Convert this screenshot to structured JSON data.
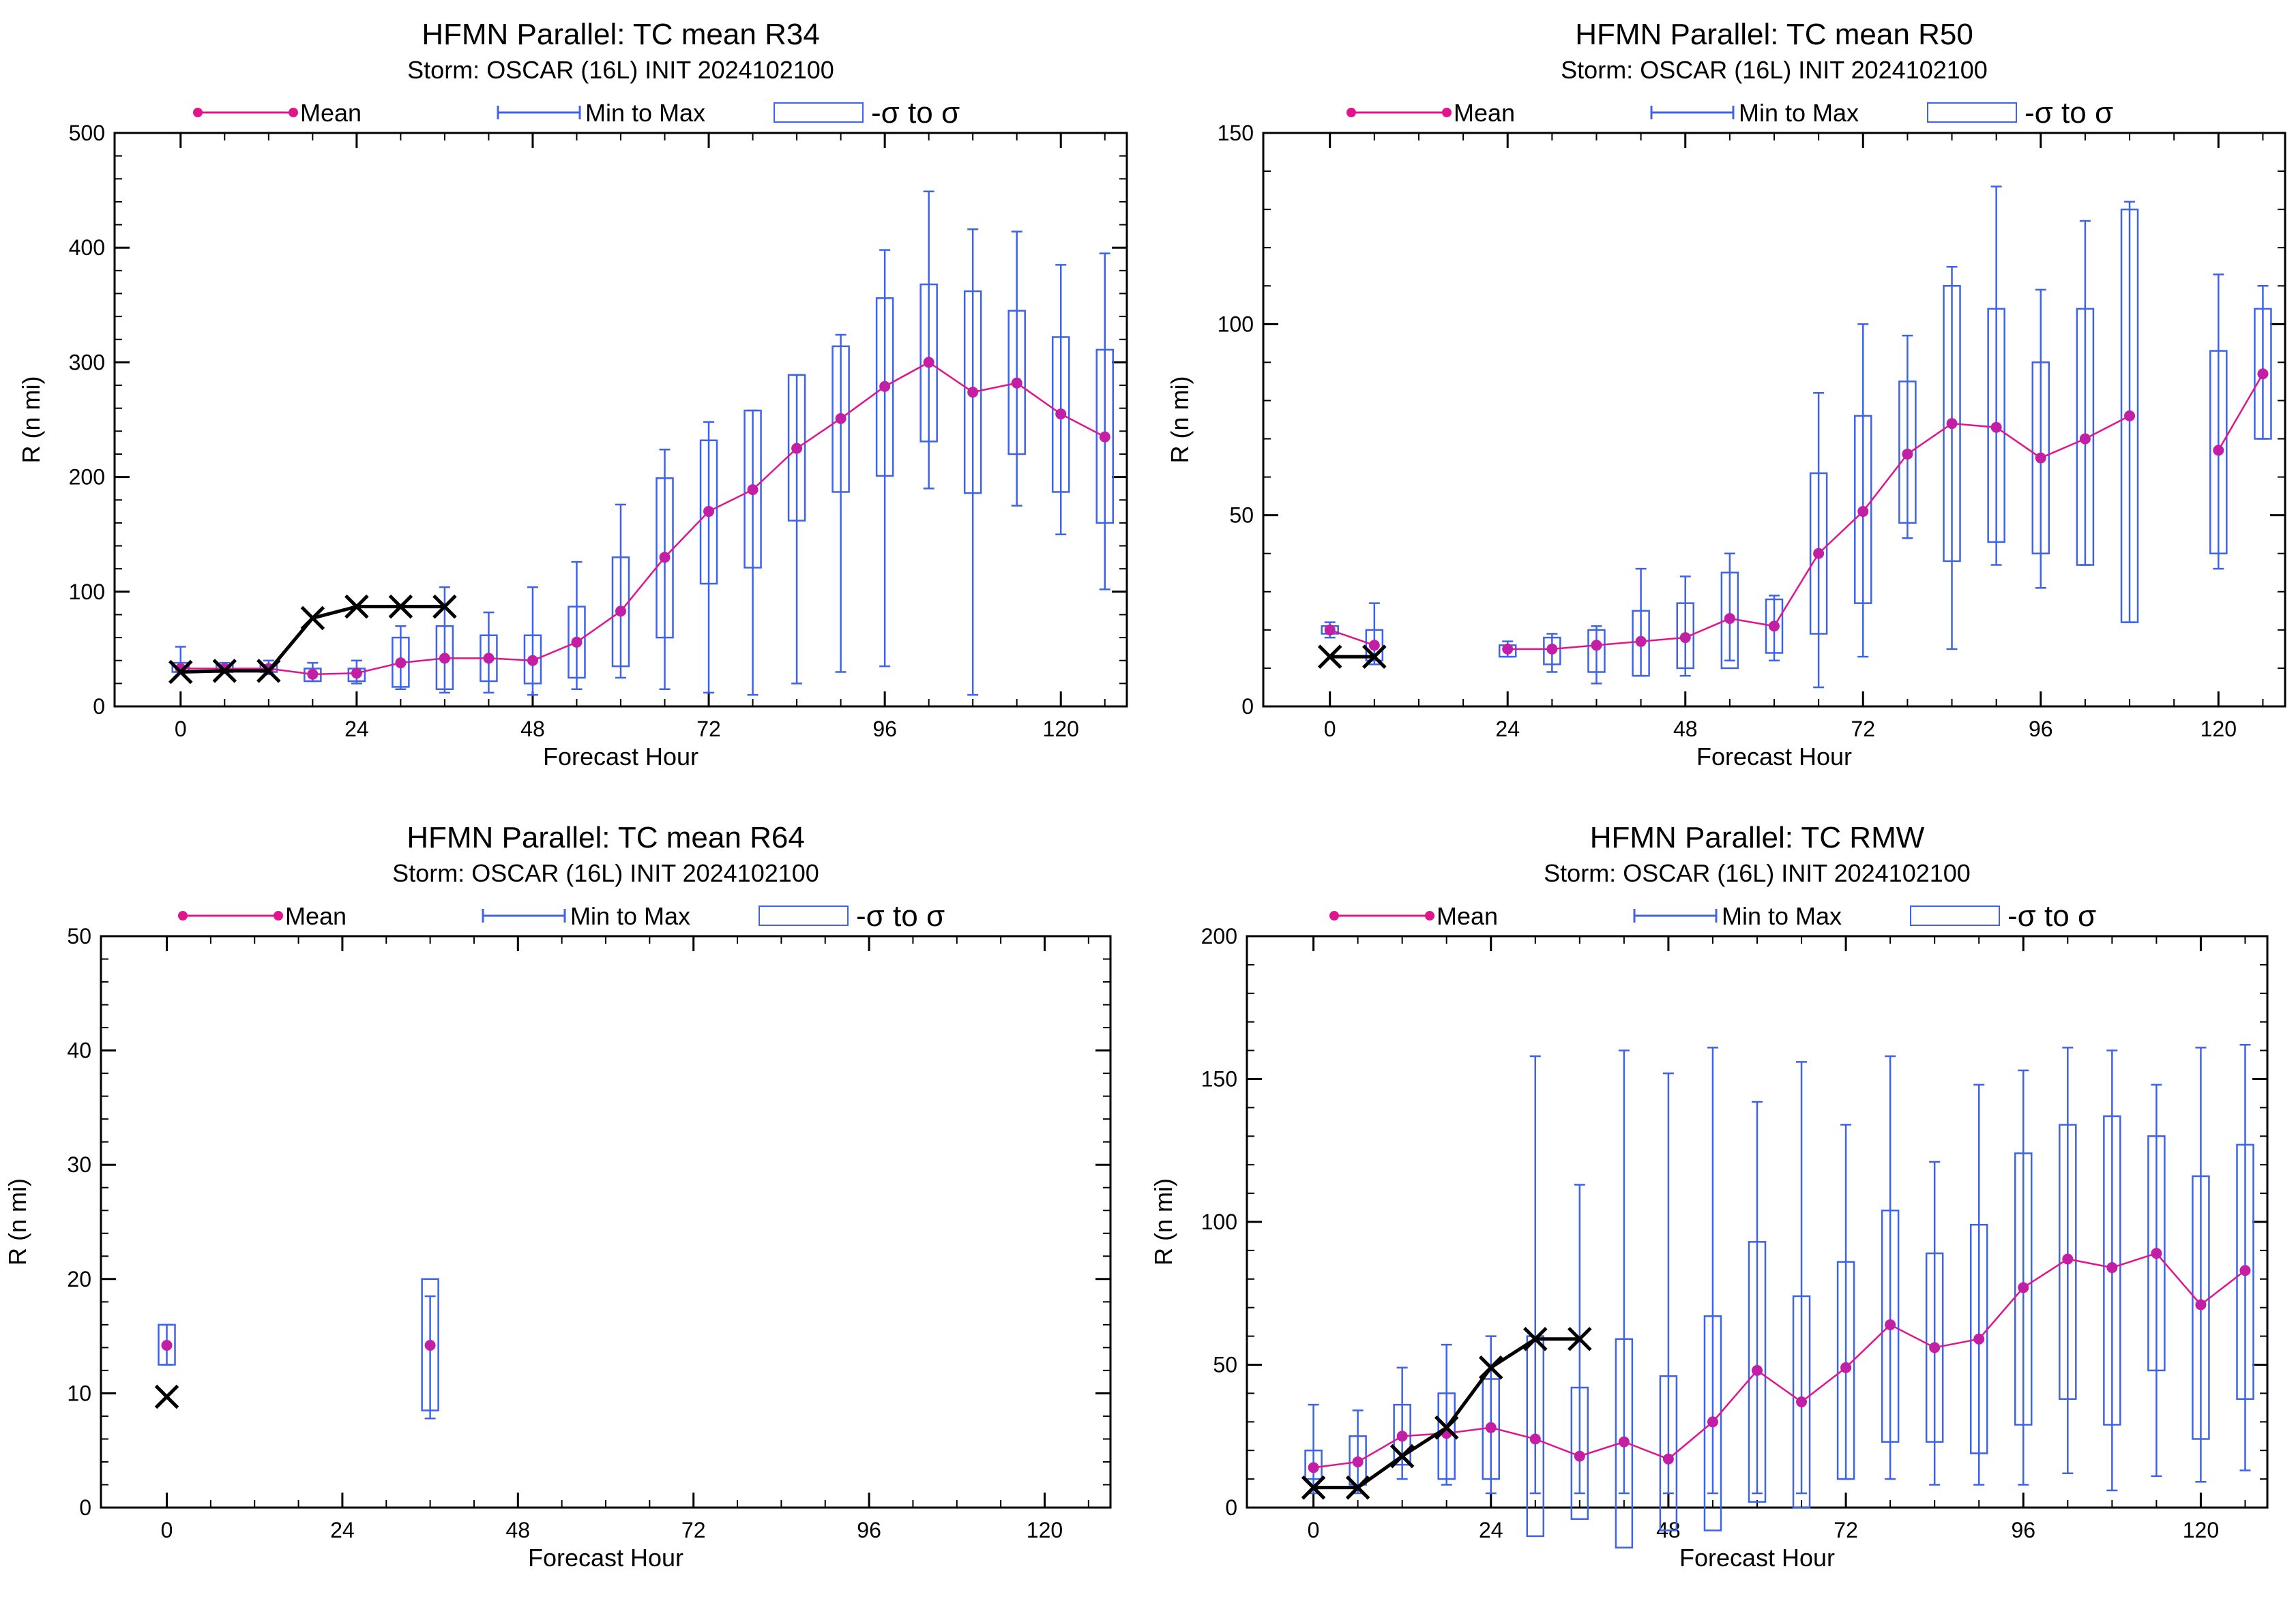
{
  "colors": {
    "mean": "#e0148c",
    "mean_dot": "#c21ea6",
    "range": "#3e63e6",
    "obs": "#000000"
  },
  "legend": {
    "mean": "Mean",
    "range": "Min to Max",
    "sigma": "-σ to σ"
  },
  "chart_data": [
    {
      "type": "box",
      "title": "HFMN Parallel: TC mean R34",
      "subtitle": "Storm: OSCAR (16L) INIT 2024102100",
      "xlabel": "Forecast Hour",
      "ylabel": "R (n mi)",
      "xlim": [
        -9,
        129
      ],
      "ylim": [
        0,
        500
      ],
      "xticks": [
        0,
        24,
        48,
        72,
        96,
        120
      ],
      "yticks": [
        0,
        100,
        200,
        300,
        400,
        500
      ],
      "boxes": [
        {
          "x": 0,
          "min": 30,
          "max": 52,
          "lo": 30,
          "hi": 38,
          "mean": 33
        },
        {
          "x": 6,
          "min": 30,
          "max": 38,
          "lo": 30,
          "hi": 36,
          "mean": 33
        },
        {
          "x": 12,
          "min": 28,
          "max": 40,
          "lo": 30,
          "hi": 36,
          "mean": 33
        },
        {
          "x": 18,
          "min": 22,
          "max": 38,
          "lo": 22,
          "hi": 33,
          "mean": 28
        },
        {
          "x": 24,
          "min": 20,
          "max": 40,
          "lo": 22,
          "hi": 33,
          "mean": 29
        },
        {
          "x": 30,
          "min": 15,
          "max": 70,
          "lo": 17,
          "hi": 60,
          "mean": 38
        },
        {
          "x": 36,
          "min": 12,
          "max": 104,
          "lo": 15,
          "hi": 70,
          "mean": 42
        },
        {
          "x": 42,
          "min": 12,
          "max": 82,
          "lo": 22,
          "hi": 62,
          "mean": 42
        },
        {
          "x": 48,
          "min": 10,
          "max": 104,
          "lo": 20,
          "hi": 62,
          "mean": 40
        },
        {
          "x": 54,
          "min": 15,
          "max": 126,
          "lo": 25,
          "hi": 87,
          "mean": 56
        },
        {
          "x": 60,
          "min": 25,
          "max": 176,
          "lo": 35,
          "hi": 130,
          "mean": 83
        },
        {
          "x": 66,
          "min": 15,
          "max": 224,
          "lo": 60,
          "hi": 199,
          "mean": 130
        },
        {
          "x": 72,
          "min": 12,
          "max": 248,
          "lo": 107,
          "hi": 232,
          "mean": 170
        },
        {
          "x": 78,
          "min": 10,
          "max": 258,
          "lo": 121,
          "hi": 258,
          "mean": 189
        },
        {
          "x": 84,
          "min": 20,
          "max": 289,
          "lo": 162,
          "hi": 289,
          "mean": 225
        },
        {
          "x": 90,
          "min": 30,
          "max": 324,
          "lo": 187,
          "hi": 314,
          "mean": 251
        },
        {
          "x": 96,
          "min": 35,
          "max": 398,
          "lo": 201,
          "hi": 356,
          "mean": 279
        },
        {
          "x": 102,
          "min": 190,
          "max": 449,
          "lo": 231,
          "hi": 368,
          "mean": 300
        },
        {
          "x": 108,
          "min": 10,
          "max": 416,
          "lo": 186,
          "hi": 362,
          "mean": 274
        },
        {
          "x": 114,
          "min": 175,
          "max": 414,
          "lo": 220,
          "hi": 345,
          "mean": 282
        },
        {
          "x": 120,
          "min": 150,
          "max": 385,
          "lo": 187,
          "hi": 322,
          "mean": 255
        },
        {
          "x": 126,
          "min": 102,
          "max": 395,
          "lo": 160,
          "hi": 311,
          "mean": 235
        }
      ],
      "obs": {
        "x": [
          0,
          6,
          12,
          18,
          24,
          30,
          36
        ],
        "y": [
          30,
          31,
          31,
          77,
          87,
          87,
          87
        ]
      }
    },
    {
      "type": "box",
      "title": "HFMN Parallel: TC mean R50",
      "subtitle": "Storm: OSCAR (16L) INIT 2024102100",
      "xlabel": "Forecast Hour",
      "ylabel": "R (n mi)",
      "xlim": [
        -9,
        129
      ],
      "ylim": [
        0,
        150
      ],
      "xticks": [
        0,
        24,
        48,
        72,
        96,
        120
      ],
      "yticks": [
        0,
        50,
        100,
        150
      ],
      "boxes": [
        {
          "x": 0,
          "min": 18,
          "max": 22,
          "lo": 19,
          "hi": 21,
          "mean": 20
        },
        {
          "x": 6,
          "min": 11,
          "max": 27,
          "lo": 12,
          "hi": 20,
          "mean": 16
        },
        {
          "x": 24,
          "min": 13,
          "max": 17,
          "lo": 13,
          "hi": 16,
          "mean": 15
        },
        {
          "x": 30,
          "min": 9,
          "max": 19,
          "lo": 11,
          "hi": 18,
          "mean": 15
        },
        {
          "x": 36,
          "min": 6,
          "max": 21,
          "lo": 9,
          "hi": 20,
          "mean": 16
        },
        {
          "x": 42,
          "min": 8,
          "max": 36,
          "lo": 8,
          "hi": 25,
          "mean": 17
        },
        {
          "x": 48,
          "min": 8,
          "max": 34,
          "lo": 10,
          "hi": 27,
          "mean": 18
        },
        {
          "x": 54,
          "min": 12,
          "max": 40,
          "lo": 10,
          "hi": 35,
          "mean": 23
        },
        {
          "x": 60,
          "min": 12,
          "max": 29,
          "lo": 14,
          "hi": 28,
          "mean": 21
        },
        {
          "x": 66,
          "min": 5,
          "max": 82,
          "lo": 19,
          "hi": 61,
          "mean": 40
        },
        {
          "x": 72,
          "min": 13,
          "max": 100,
          "lo": 27,
          "hi": 76,
          "mean": 51
        },
        {
          "x": 78,
          "min": 44,
          "max": 97,
          "lo": 48,
          "hi": 85,
          "mean": 66
        },
        {
          "x": 84,
          "min": 15,
          "max": 115,
          "lo": 38,
          "hi": 110,
          "mean": 74
        },
        {
          "x": 90,
          "min": 37,
          "max": 136,
          "lo": 43,
          "hi": 104,
          "mean": 73
        },
        {
          "x": 96,
          "min": 31,
          "max": 109,
          "lo": 40,
          "hi": 90,
          "mean": 65
        },
        {
          "x": 102,
          "min": 37,
          "max": 127,
          "lo": 37,
          "hi": 104,
          "mean": 70
        },
        {
          "x": 108,
          "min": 22,
          "max": 132,
          "lo": 22,
          "hi": 130,
          "mean": 76
        },
        {
          "x": 120,
          "min": 36,
          "max": 113,
          "lo": 40,
          "hi": 93,
          "mean": 67
        },
        {
          "x": 126,
          "min": 70,
          "max": 110,
          "lo": 70,
          "hi": 104,
          "mean": 87
        }
      ],
      "obs": {
        "x": [
          0,
          6
        ],
        "y": [
          13,
          13
        ]
      }
    },
    {
      "type": "box",
      "title": "HFMN Parallel: TC mean R64",
      "subtitle": "Storm: OSCAR (16L) INIT 2024102100",
      "xlabel": "Forecast Hour",
      "ylabel": "R (n mi)",
      "xlim": [
        -9,
        129
      ],
      "ylim": [
        0,
        50
      ],
      "xticks": [
        0,
        24,
        48,
        72,
        96,
        120
      ],
      "yticks": [
        0,
        10,
        20,
        30,
        40,
        50
      ],
      "boxes": [
        {
          "x": 0,
          "min": 12.5,
          "max": 16,
          "lo": 12.5,
          "hi": 16,
          "mean": 14.2
        },
        {
          "x": 36,
          "min": 7.8,
          "max": 18.5,
          "lo": 8.5,
          "hi": 20,
          "mean": 14.2
        }
      ],
      "obs": {
        "x": [
          0
        ],
        "y": [
          9.7
        ]
      }
    },
    {
      "type": "box",
      "title": "HFMN Parallel: TC RMW",
      "subtitle": "Storm: OSCAR (16L) INIT 2024102100",
      "xlabel": "Forecast Hour",
      "ylabel": "R (n mi)",
      "xlim": [
        -9,
        129
      ],
      "ylim": [
        0,
        200
      ],
      "xticks": [
        0,
        24,
        48,
        72,
        96,
        120
      ],
      "yticks": [
        0,
        50,
        100,
        150,
        200
      ],
      "boxes": [
        {
          "x": 0,
          "min": 5,
          "max": 36,
          "lo": 10,
          "hi": 20,
          "mean": 14
        },
        {
          "x": 6,
          "min": 5,
          "max": 34,
          "lo": 8,
          "hi": 25,
          "mean": 16
        },
        {
          "x": 12,
          "min": 10,
          "max": 49,
          "lo": 15,
          "hi": 36,
          "mean": 25
        },
        {
          "x": 18,
          "min": 8,
          "max": 57,
          "lo": 10,
          "hi": 40,
          "mean": 26
        },
        {
          "x": 24,
          "min": 5,
          "max": 60,
          "lo": 10,
          "hi": 45,
          "mean": 28
        },
        {
          "x": 30,
          "min": 5,
          "max": 158,
          "lo": -10,
          "hi": 60,
          "mean": 24
        },
        {
          "x": 36,
          "min": 5,
          "max": 113,
          "lo": -4,
          "hi": 42,
          "mean": 18
        },
        {
          "x": 42,
          "min": 5,
          "max": 160,
          "lo": -14,
          "hi": 59,
          "mean": 23
        },
        {
          "x": 48,
          "min": 5,
          "max": 152,
          "lo": -8,
          "hi": 46,
          "mean": 17
        },
        {
          "x": 54,
          "min": 5,
          "max": 161,
          "lo": -8,
          "hi": 67,
          "mean": 30
        },
        {
          "x": 60,
          "min": 5,
          "max": 142,
          "lo": 2,
          "hi": 93,
          "mean": 48
        },
        {
          "x": 66,
          "min": 5,
          "max": 156,
          "lo": 0,
          "hi": 74,
          "mean": 37
        },
        {
          "x": 72,
          "min": 10,
          "max": 134,
          "lo": 10,
          "hi": 86,
          "mean": 49
        },
        {
          "x": 78,
          "min": 10,
          "max": 158,
          "lo": 23,
          "hi": 104,
          "mean": 64
        },
        {
          "x": 84,
          "min": 8,
          "max": 121,
          "lo": 23,
          "hi": 89,
          "mean": 56
        },
        {
          "x": 90,
          "min": 8,
          "max": 148,
          "lo": 19,
          "hi": 99,
          "mean": 59
        },
        {
          "x": 96,
          "min": 8,
          "max": 153,
          "lo": 29,
          "hi": 124,
          "mean": 77
        },
        {
          "x": 102,
          "min": 12,
          "max": 161,
          "lo": 38,
          "hi": 134,
          "mean": 87
        },
        {
          "x": 108,
          "min": 6,
          "max": 160,
          "lo": 29,
          "hi": 137,
          "mean": 84
        },
        {
          "x": 114,
          "min": 11,
          "max": 148,
          "lo": 48,
          "hi": 130,
          "mean": 89
        },
        {
          "x": 120,
          "min": 9,
          "max": 161,
          "lo": 24,
          "hi": 116,
          "mean": 71
        },
        {
          "x": 126,
          "min": 13,
          "max": 162,
          "lo": 38,
          "hi": 127,
          "mean": 83
        }
      ],
      "obs": {
        "x": [
          0,
          6,
          12,
          18,
          24,
          30,
          36
        ],
        "y": [
          7,
          7,
          18,
          28,
          49,
          59,
          59
        ]
      }
    }
  ]
}
